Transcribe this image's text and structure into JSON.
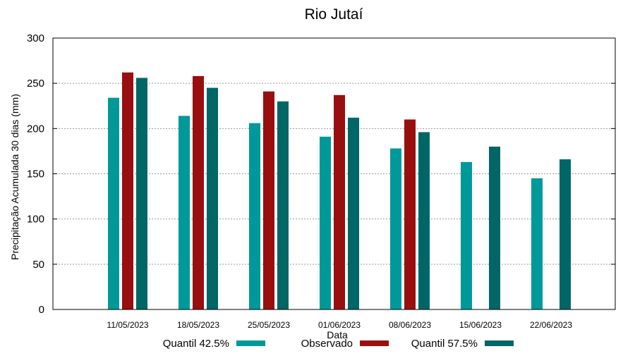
{
  "chart_data": {
    "type": "bar",
    "title": "Rio Jutaí",
    "xlabel": "Data",
    "ylabel": "Precipitação Acumulada 30 dias (mm)",
    "ylim": [
      0,
      300
    ],
    "yticks": [
      "0",
      "50",
      "100",
      "150",
      "200",
      "250",
      "300"
    ],
    "grid": true,
    "legend_position": "bottom",
    "categories": [
      "11/05/2023",
      "18/05/2023",
      "25/05/2023",
      "01/06/2023",
      "08/06/2023",
      "15/06/2023",
      "22/06/2023"
    ],
    "series": [
      {
        "name": "Quantil 42.5%",
        "color": "#009999",
        "values": [
          234,
          214,
          206,
          191,
          178,
          163,
          145
        ]
      },
      {
        "name": "Observado",
        "color": "#990f0f",
        "values": [
          262,
          258,
          241,
          237,
          210,
          null,
          null
        ]
      },
      {
        "name": "Quantil 57.5%",
        "color": "#006666",
        "values": [
          256,
          245,
          230,
          212,
          196,
          180,
          166
        ]
      }
    ]
  }
}
